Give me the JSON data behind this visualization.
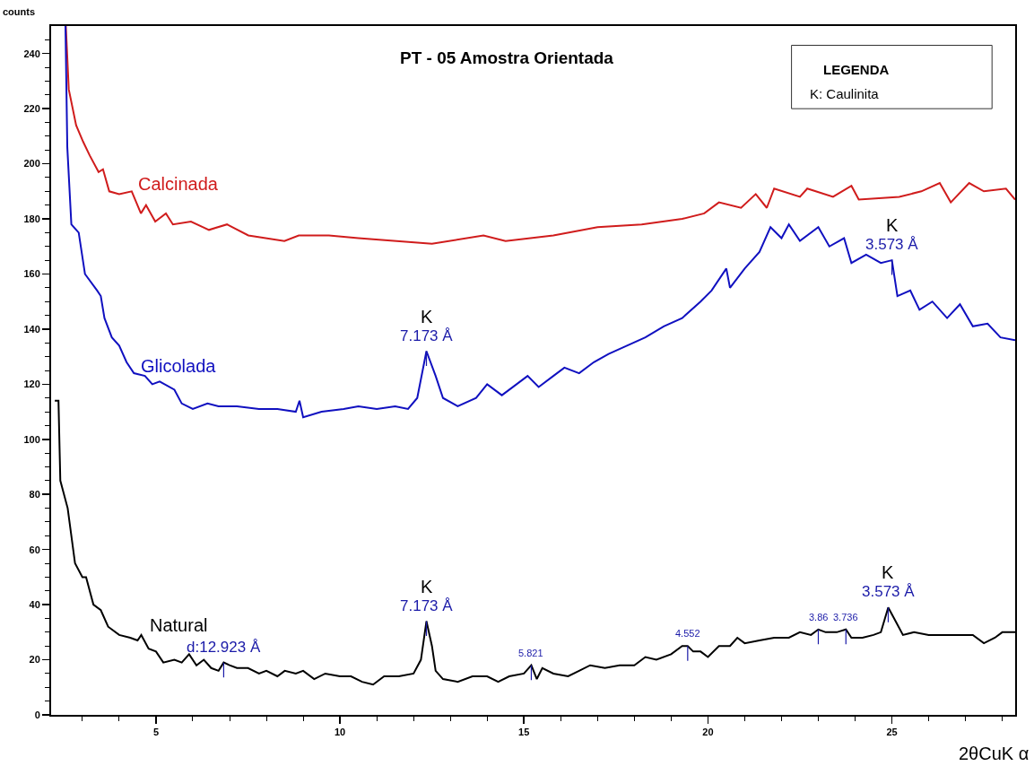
{
  "chart_data": {
    "type": "line",
    "title": "PT - 05 Amostra Orientada",
    "xlabel": "2θCuK α",
    "ylabel": "counts",
    "xlim": [
      2.15,
      28.35
    ],
    "xticks": [
      {
        "value": 3,
        "label": null
      },
      {
        "value": 4,
        "label": null
      },
      5,
      {
        "value": 6,
        "label": null
      },
      {
        "value": 7,
        "label": null
      },
      {
        "value": 8,
        "label": null
      },
      {
        "value": 9,
        "label": null
      },
      10,
      {
        "value": 11,
        "label": null
      },
      {
        "value": 12,
        "label": null
      },
      {
        "value": 13,
        "label": null
      },
      {
        "value": 14,
        "label": null
      },
      15,
      {
        "value": 16,
        "label": null
      },
      {
        "value": 17,
        "label": null
      },
      {
        "value": 18,
        "label": null
      },
      {
        "value": 19,
        "label": null
      },
      20,
      {
        "value": 21,
        "label": null
      },
      {
        "value": 22,
        "label": null
      },
      {
        "value": 23,
        "label": null
      },
      {
        "value": 24,
        "label": null
      },
      25,
      {
        "value": 26,
        "label": null
      },
      {
        "value": 27,
        "label": null
      },
      {
        "value": 28,
        "label": null
      }
    ],
    "ylim": [
      0,
      250
    ],
    "yticks": [
      0,
      {
        "value": 5,
        "label": null
      },
      {
        "value": 10,
        "label": null
      },
      {
        "value": 15,
        "label": null
      },
      20,
      {
        "value": 25,
        "label": null
      },
      {
        "value": 30,
        "label": null
      },
      {
        "value": 35,
        "label": null
      },
      40,
      {
        "value": 45,
        "label": null
      },
      {
        "value": 50,
        "label": null
      },
      {
        "value": 55,
        "label": null
      },
      60,
      {
        "value": 65,
        "label": null
      },
      {
        "value": 70,
        "label": null
      },
      {
        "value": 75,
        "label": null
      },
      80,
      {
        "value": 85,
        "label": null
      },
      {
        "value": 90,
        "label": null
      },
      {
        "value": 95,
        "label": null
      },
      100,
      {
        "value": 105,
        "label": null
      },
      {
        "value": 110,
        "label": null
      },
      {
        "value": 115,
        "label": null
      },
      120,
      {
        "value": 125,
        "label": null
      },
      {
        "value": 130,
        "label": null
      },
      {
        "value": 135,
        "label": null
      },
      140,
      {
        "value": 145,
        "label": null
      },
      {
        "value": 150,
        "label": null
      },
      {
        "value": 155,
        "label": null
      },
      160,
      {
        "value": 165,
        "label": null
      },
      {
        "value": 170,
        "label": null
      },
      {
        "value": 175,
        "label": null
      },
      180,
      {
        "value": 185,
        "label": null
      },
      {
        "value": 190,
        "label": null
      },
      {
        "value": 195,
        "label": null
      },
      200,
      {
        "value": 205,
        "label": null
      },
      {
        "value": 210,
        "label": null
      },
      {
        "value": 215,
        "label": null
      },
      220,
      {
        "value": 225,
        "label": null
      },
      {
        "value": 230,
        "label": null
      },
      {
        "value": 235,
        "label": null
      },
      240,
      {
        "value": 245,
        "label": null
      }
    ],
    "grid": false,
    "legend": false,
    "marker": "none",
    "line_style": "solid",
    "series": [
      {
        "name": "Calcinada",
        "color": "#d01c1c",
        "x": [
          2.55,
          2.63,
          2.83,
          3.02,
          3.2,
          3.44,
          3.56,
          3.73,
          4.0,
          4.34,
          4.59,
          4.73,
          4.98,
          5.27,
          5.46,
          5.95,
          6.44,
          6.93,
          7.51,
          8.49,
          8.88,
          9.7,
          10.5,
          12.5,
          13.9,
          14.5,
          15.8,
          17.0,
          18.2,
          19.3,
          19.9,
          20.3,
          20.9,
          21.3,
          21.6,
          21.8,
          22.5,
          22.7,
          23.4,
          23.9,
          24.1,
          25.2,
          25.8,
          26.3,
          26.6,
          27.1,
          27.5,
          28.1,
          28.35
        ],
        "values": [
          250,
          227,
          214,
          208,
          203,
          197,
          198,
          190,
          189,
          190,
          182,
          185,
          179,
          182,
          178,
          179,
          176,
          178,
          174,
          172,
          174,
          174,
          173,
          171,
          174,
          172,
          174,
          177,
          178,
          180,
          182,
          186,
          184,
          189,
          184,
          191,
          188,
          191,
          188,
          192,
          187,
          188,
          190,
          193,
          186,
          193,
          190,
          191,
          187
        ]
      },
      {
        "name": "Glicolada",
        "color": "#1010c0",
        "x": [
          2.54,
          2.59,
          2.7,
          2.9,
          3.07,
          3.4,
          3.5,
          3.6,
          3.8,
          4.0,
          4.2,
          4.4,
          4.7,
          4.9,
          5.1,
          5.5,
          5.7,
          6.0,
          6.4,
          6.7,
          7.2,
          7.8,
          8.3,
          8.8,
          8.9,
          9.0,
          9.5,
          10.1,
          10.5,
          11.0,
          11.5,
          11.85,
          12.1,
          12.35,
          12.6,
          12.8,
          13.2,
          13.7,
          14.0,
          14.4,
          14.8,
          15.1,
          15.4,
          15.8,
          16.1,
          16.5,
          16.9,
          17.3,
          17.8,
          18.3,
          18.8,
          19.3,
          19.8,
          20.1,
          20.5,
          20.6,
          21.0,
          21.4,
          21.7,
          22.0,
          22.2,
          22.5,
          23.0,
          23.3,
          23.7,
          23.9,
          24.3,
          24.7,
          25.0,
          25.15,
          25.5,
          25.75,
          26.1,
          26.5,
          26.85,
          27.2,
          27.6,
          27.95,
          28.35
        ],
        "values": [
          250,
          206,
          178,
          175,
          160,
          154,
          152,
          144,
          137,
          134,
          128,
          124,
          123,
          120,
          121,
          118,
          113,
          111,
          113,
          112,
          112,
          111,
          111,
          110,
          114,
          108,
          110,
          111,
          112,
          111,
          112,
          111,
          115,
          132,
          123,
          115,
          112,
          115,
          120,
          116,
          120,
          123,
          119,
          123,
          126,
          124,
          128,
          131,
          134,
          137,
          141,
          144,
          150,
          154,
          162,
          155,
          162,
          168,
          177,
          173,
          178,
          172,
          177,
          170,
          173,
          164,
          167,
          164,
          165,
          152,
          154,
          147,
          150,
          144,
          149,
          141,
          142,
          137,
          136
        ]
      },
      {
        "name": "Natural",
        "color": "#000000",
        "x": [
          2.25,
          2.35,
          2.4,
          2.6,
          2.8,
          3.0,
          3.1,
          3.3,
          3.5,
          3.7,
          4.0,
          4.3,
          4.5,
          4.6,
          4.8,
          5.0,
          5.2,
          5.5,
          5.7,
          5.9,
          6.1,
          6.3,
          6.5,
          6.7,
          6.84,
          7.0,
          7.2,
          7.5,
          7.8,
          8.0,
          8.3,
          8.5,
          8.8,
          9.0,
          9.3,
          9.6,
          10.0,
          10.3,
          10.6,
          10.9,
          11.2,
          11.6,
          12.0,
          12.2,
          12.35,
          12.5,
          12.6,
          12.8,
          13.2,
          13.6,
          14.0,
          14.3,
          14.6,
          15.0,
          15.2,
          15.35,
          15.5,
          15.8,
          16.2,
          16.5,
          16.8,
          17.2,
          17.6,
          18.0,
          18.3,
          18.6,
          19.0,
          19.3,
          19.45,
          19.6,
          19.8,
          20.0,
          20.3,
          20.6,
          20.8,
          21.0,
          21.4,
          21.8,
          22.2,
          22.5,
          22.8,
          23.0,
          23.2,
          23.5,
          23.75,
          23.9,
          24.2,
          24.5,
          24.7,
          24.9,
          25.1,
          25.3,
          25.6,
          26.0,
          26.4,
          26.8,
          27.2,
          27.5,
          27.8,
          28.0,
          28.35
        ],
        "values": [
          114,
          114,
          85,
          75,
          55,
          50,
          50,
          40,
          38,
          32,
          29,
          28,
          27,
          29,
          24,
          23,
          19,
          20,
          19,
          22,
          18,
          20,
          17,
          16,
          19,
          18,
          17,
          17,
          15,
          16,
          14,
          16,
          15,
          16,
          13,
          15,
          14,
          14,
          12,
          11,
          14,
          14,
          15,
          20,
          34,
          25,
          16,
          13,
          12,
          14,
          14,
          12,
          14,
          15,
          18,
          13,
          17,
          15,
          14,
          16,
          18,
          17,
          18,
          18,
          21,
          20,
          22,
          25,
          25,
          23,
          23,
          21,
          25,
          25,
          28,
          26,
          27,
          28,
          28,
          30,
          29,
          31,
          30,
          30,
          31,
          28,
          28,
          29,
          30,
          39,
          34,
          29,
          30,
          29,
          29,
          29,
          29,
          26,
          28,
          30,
          30
        ]
      }
    ],
    "annotations": [
      "LEGENDA",
      "K: Caulinita",
      {
        "text": "K",
        "x": 12.35,
        "y": 132
      },
      {
        "text": "7.173 Å",
        "x": 12.35,
        "y": 132
      },
      {
        "text": "K",
        "x": 25.0,
        "y": 165
      },
      {
        "text": "3.573 Å",
        "x": 25.0,
        "y": 165
      },
      {
        "text": "K",
        "x": 12.35,
        "y": 34
      },
      {
        "text": "7.173 Å",
        "x": 12.35,
        "y": 34
      },
      {
        "text": "d:12.923 Å",
        "x": 6.84,
        "y": 19
      },
      {
        "text": "5.821",
        "x": 15.2,
        "y": 18
      },
      {
        "text": "4.552",
        "x": 19.45,
        "y": 25
      },
      {
        "text": "3.86",
        "x": 23.0,
        "y": 31
      },
      {
        "text": "3.736",
        "x": 23.75,
        "y": 31
      },
      {
        "text": "K",
        "x": 24.9,
        "y": 39
      },
      {
        "text": "3.573 Å",
        "x": 24.9,
        "y": 39
      }
    ]
  }
}
